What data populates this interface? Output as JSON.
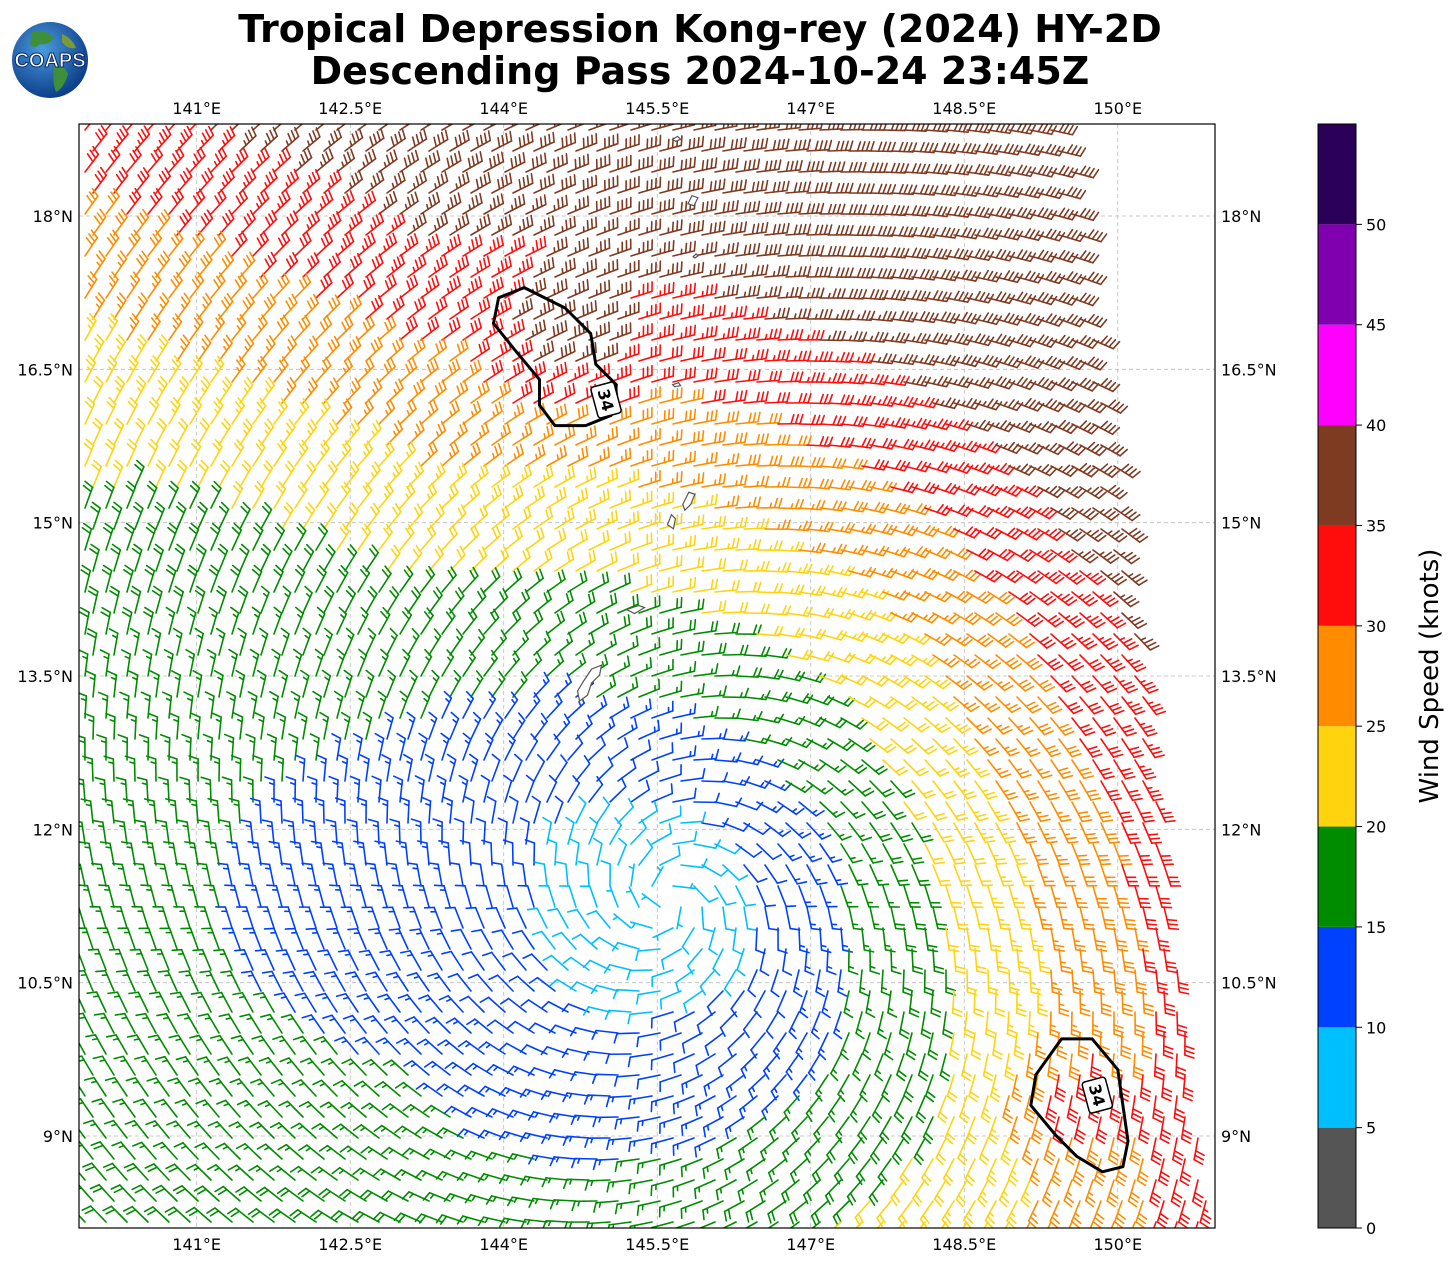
{
  "title": {
    "line1": "Tropical Depression Kong-rey (2024) HY-2D",
    "line2": "Descending Pass 2024-10-24 23:45Z"
  },
  "logo": {
    "text": "COAPS",
    "icon": "earth-globe-icon"
  },
  "map": {
    "lon_range": [
      139.85,
      150.95
    ],
    "lat_range": [
      8.1,
      18.9
    ],
    "lon_ticks": [
      {
        "value": 141.0,
        "label": "141°E"
      },
      {
        "value": 142.5,
        "label": "142.5°E"
      },
      {
        "value": 144.0,
        "label": "144°E"
      },
      {
        "value": 145.5,
        "label": "145.5°E"
      },
      {
        "value": 147.0,
        "label": "147°E"
      },
      {
        "value": 148.5,
        "label": "148.5°E"
      },
      {
        "value": 150.0,
        "label": "150°E"
      }
    ],
    "lat_ticks": [
      {
        "value": 18.0,
        "label": "18°N"
      },
      {
        "value": 16.5,
        "label": "16.5°N"
      },
      {
        "value": 15.0,
        "label": "15°N"
      },
      {
        "value": 13.5,
        "label": "13.5°N"
      },
      {
        "value": 12.0,
        "label": "12°N"
      },
      {
        "value": 10.5,
        "label": "10.5°N"
      },
      {
        "value": 9.0,
        "label": "9°N"
      }
    ],
    "grid": true,
    "circulation_center": {
      "lon": 145.6,
      "lat": 11.3
    },
    "contour_34kt": [
      {
        "label": "34",
        "lon": 145.0,
        "lat": 16.2
      },
      {
        "label": "34",
        "lon": 149.8,
        "lat": 9.4
      }
    ],
    "islands": [
      "Guam",
      "Rota",
      "Tinian",
      "Saipan",
      "Anatahan",
      "Pagan",
      "Agrihan"
    ]
  },
  "colorbar": {
    "label": "Wind Speed (knots)",
    "ticks": [
      "0",
      "5",
      "10",
      "15",
      "20",
      "25",
      "30",
      "35",
      "40",
      "45",
      "50"
    ],
    "bins": [
      {
        "min": 0,
        "max": 5,
        "color": "#555555"
      },
      {
        "min": 5,
        "max": 10,
        "color": "#00bfff"
      },
      {
        "min": 10,
        "max": 15,
        "color": "#0040ff"
      },
      {
        "min": 15,
        "max": 20,
        "color": "#008c00"
      },
      {
        "min": 20,
        "max": 25,
        "color": "#ffd40f"
      },
      {
        "min": 25,
        "max": 30,
        "color": "#ff8c00"
      },
      {
        "min": 30,
        "max": 35,
        "color": "#ff0d0d"
      },
      {
        "min": 35,
        "max": 40,
        "color": "#7f3a22"
      },
      {
        "min": 40,
        "max": 45,
        "color": "#ff00ff"
      },
      {
        "min": 45,
        "max": 50,
        "color": "#8000b0"
      },
      {
        "min": 50,
        "max": 55,
        "color": "#2a0059"
      }
    ]
  }
}
